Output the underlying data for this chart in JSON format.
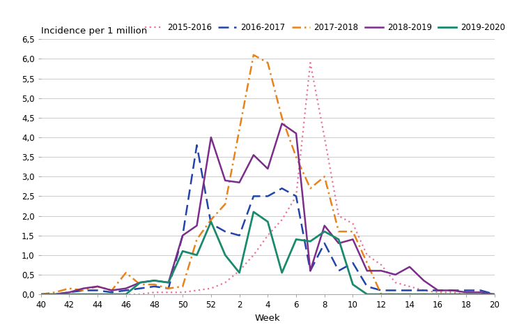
{
  "ylabel": "Incidence per 1 million",
  "xlabel": "Week",
  "ylim": [
    0,
    6.5
  ],
  "yticks": [
    0.0,
    0.5,
    1.0,
    1.5,
    2.0,
    2.5,
    3.0,
    3.5,
    4.0,
    4.5,
    5.0,
    5.5,
    6.0,
    6.5
  ],
  "ytick_labels": [
    "0,0",
    "0,5",
    "1,0",
    "1,5",
    "2,0",
    "2,5",
    "3,0",
    "3,5",
    "4,0",
    "4,5",
    "5,0",
    "5,5",
    "6,0",
    "6,5"
  ],
  "x_tick_positions": [
    40,
    42,
    44,
    46,
    48,
    50,
    52,
    54,
    56,
    58,
    60,
    62,
    64,
    66,
    68,
    70,
    72
  ],
  "x_tick_labels": [
    "40",
    "42",
    "44",
    "46",
    "48",
    "50",
    "52",
    "2",
    "4",
    "6",
    "8",
    "10",
    "12",
    "14",
    "16",
    "18",
    "20"
  ],
  "series": [
    {
      "label": "2015-2016",
      "color": "#e8729a",
      "linestyle": "dotted",
      "linewidth": 1.6,
      "x": [
        40,
        41,
        42,
        43,
        44,
        45,
        46,
        47,
        48,
        49,
        50,
        51,
        52,
        53,
        54,
        55,
        56,
        57,
        58,
        59,
        60,
        61,
        62,
        63,
        64,
        65,
        66,
        67,
        68,
        69,
        70,
        71,
        72
      ],
      "y": [
        0.0,
        0.0,
        0.0,
        0.0,
        0.0,
        0.0,
        0.0,
        0.0,
        0.05,
        0.05,
        0.05,
        0.1,
        0.15,
        0.3,
        0.6,
        1.0,
        1.5,
        1.9,
        2.5,
        5.9,
        4.0,
        2.0,
        1.8,
        1.0,
        0.75,
        0.3,
        0.2,
        0.1,
        0.05,
        0.05,
        0.0,
        0.0,
        0.0
      ]
    },
    {
      "label": "2016-2017",
      "color": "#2244aa",
      "linestyle": "dashed",
      "linewidth": 1.8,
      "x": [
        40,
        41,
        42,
        43,
        44,
        45,
        46,
        47,
        48,
        49,
        50,
        51,
        52,
        53,
        54,
        55,
        56,
        57,
        58,
        59,
        60,
        61,
        62,
        63,
        64,
        65,
        66,
        67,
        68,
        69,
        70,
        71,
        72
      ],
      "y": [
        0.0,
        0.0,
        0.05,
        0.1,
        0.1,
        0.05,
        0.1,
        0.15,
        0.2,
        0.15,
        1.5,
        3.8,
        1.8,
        1.6,
        1.5,
        2.5,
        2.5,
        2.7,
        2.5,
        0.6,
        1.3,
        0.6,
        0.8,
        0.2,
        0.1,
        0.1,
        0.1,
        0.1,
        0.1,
        0.1,
        0.1,
        0.1,
        0.0
      ]
    },
    {
      "label": "2017-2018",
      "color": "#e8821a",
      "linestyle": "dashdot",
      "linewidth": 1.8,
      "x": [
        40,
        41,
        42,
        43,
        44,
        45,
        46,
        47,
        48,
        49,
        50,
        51,
        52,
        53,
        54,
        55,
        56,
        57,
        58,
        59,
        60,
        61,
        62,
        63,
        64,
        65,
        66,
        67,
        68,
        69,
        70,
        71,
        72
      ],
      "y": [
        0.0,
        0.05,
        0.15,
        0.1,
        0.2,
        0.1,
        0.55,
        0.25,
        0.25,
        0.15,
        0.2,
        1.4,
        1.9,
        2.3,
        4.2,
        6.1,
        5.9,
        4.5,
        3.5,
        2.7,
        3.0,
        1.6,
        1.6,
        0.8,
        0.0,
        0.0,
        0.0,
        0.0,
        0.0,
        0.0,
        0.0,
        0.0,
        0.0
      ]
    },
    {
      "label": "2018-2019",
      "color": "#7b2d8b",
      "linestyle": "solid",
      "linewidth": 1.8,
      "x": [
        40,
        41,
        42,
        43,
        44,
        45,
        46,
        47,
        48,
        49,
        50,
        51,
        52,
        53,
        54,
        55,
        56,
        57,
        58,
        59,
        60,
        61,
        62,
        63,
        64,
        65,
        66,
        67,
        68,
        69,
        70,
        71,
        72
      ],
      "y": [
        0.0,
        0.0,
        0.05,
        0.15,
        0.2,
        0.1,
        0.15,
        0.3,
        0.35,
        0.3,
        1.5,
        1.75,
        4.0,
        2.9,
        2.85,
        3.55,
        3.2,
        4.35,
        4.1,
        0.6,
        1.75,
        1.3,
        1.4,
        0.6,
        0.6,
        0.5,
        0.7,
        0.35,
        0.1,
        0.1,
        0.05,
        0.05,
        0.0
      ]
    },
    {
      "label": "2019-2020",
      "color": "#1a8a6e",
      "linestyle": "solid",
      "linewidth": 2.0,
      "x": [
        40,
        41,
        42,
        43,
        44,
        45,
        46,
        47,
        48,
        49,
        50,
        51,
        52,
        53,
        54,
        55,
        56,
        57,
        58,
        59,
        60,
        61,
        62,
        63,
        64,
        65,
        66,
        67,
        68,
        69,
        70,
        71,
        72
      ],
      "y": [
        0.0,
        0.0,
        0.0,
        0.0,
        0.0,
        0.0,
        0.0,
        0.3,
        0.35,
        0.3,
        1.1,
        1.0,
        1.85,
        1.0,
        0.55,
        2.1,
        1.85,
        0.55,
        1.4,
        1.35,
        1.6,
        1.4,
        0.25,
        0.0,
        0.0,
        0.0,
        0.0,
        0.0,
        0.0,
        0.0,
        0.0,
        0.0,
        0.0
      ]
    }
  ],
  "background_color": "#ffffff",
  "grid_color": "#cccccc",
  "legend_fontsize": 8.5,
  "axis_label_fontsize": 9.5,
  "tick_fontsize": 8.5
}
